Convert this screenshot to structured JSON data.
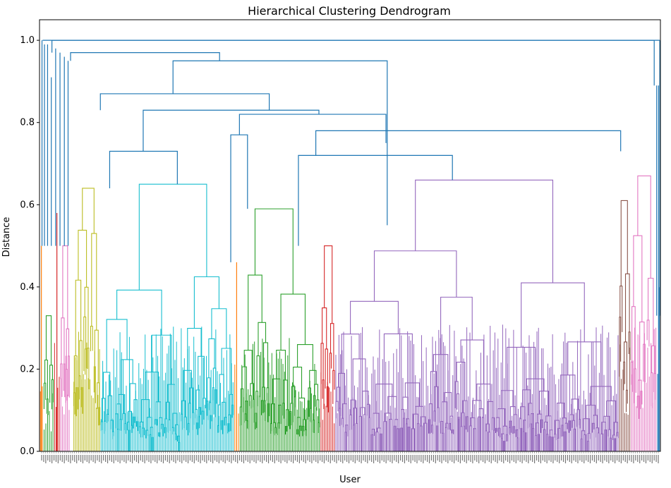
{
  "chart_data": {
    "type": "dendrogram",
    "title": "Hierarchical Clustering Dendrogram",
    "xlabel": "User",
    "ylabel": "Distance",
    "ylim": [
      0.0,
      1.05
    ],
    "yticks": [
      0.0,
      0.2,
      0.4,
      0.6,
      0.8,
      1.0
    ],
    "yticklabels": [
      "0.0",
      "0.2",
      "0.4",
      "0.6",
      "0.8",
      "1.0"
    ],
    "grid": false,
    "leaf_count": 300,
    "above_threshold_color": "#1f77b4",
    "colors": {
      "orange": "#ff7f0e",
      "green": "#2ca02c",
      "red": "#d62728",
      "purple": "#9467bd",
      "brown": "#8c564b",
      "pink": "#e377c2",
      "olive": "#bcbd22",
      "cyan": "#17becf",
      "link": "#1f77b4"
    },
    "clusters": [
      {
        "color": "orange",
        "x": [
          0.0,
          0.6
        ],
        "top": 0.5
      },
      {
        "color": "green",
        "x": [
          0.6,
          2.3
        ],
        "top": 0.33
      },
      {
        "color": "red",
        "x": [
          2.3,
          3.3
        ],
        "top": 0.58
      },
      {
        "color": "pink",
        "x": [
          3.3,
          4.9
        ],
        "top": 0.5
      },
      {
        "color": "olive",
        "x": [
          5.4,
          9.8
        ],
        "top": 0.64
      },
      {
        "color": "cyan",
        "x": [
          9.8,
          31.3
        ],
        "top": 0.65
      },
      {
        "color": "orange",
        "x": [
          31.3,
          32.2
        ],
        "top": 0.46
      },
      {
        "color": "green",
        "x": [
          32.2,
          45.2
        ],
        "top": 0.59
      },
      {
        "color": "red",
        "x": [
          45.2,
          47.6
        ],
        "top": 0.5
      },
      {
        "color": "purple",
        "x": [
          47.6,
          93.3
        ],
        "top": 0.66
      },
      {
        "color": "brown",
        "x": [
          93.3,
          95.2
        ],
        "top": 0.61
      },
      {
        "color": "pink",
        "x": [
          95.2,
          99.4
        ],
        "top": 0.67
      },
      {
        "color": "link",
        "x": [
          99.4,
          100.0
        ],
        "top": 0.89
      }
    ],
    "links": [
      {
        "left": 11.3,
        "right": 22.2,
        "height": 0.73,
        "left_child": 0.64,
        "right_child": 0.65
      },
      {
        "left": 30.8,
        "right": 33.5,
        "height": 0.77,
        "left_child": 0.46,
        "right_child": 0.59
      },
      {
        "left": 41.7,
        "right": 66.5,
        "height": 0.72,
        "left_child": 0.5,
        "right_child": 0.66
      },
      {
        "left": 32.2,
        "right": 55.8,
        "height": 0.82,
        "left_child": 0.77,
        "right_child": 0.75
      },
      {
        "left": 16.7,
        "right": 45.0,
        "height": 0.83,
        "left_child": 0.73,
        "right_child": 0.82
      },
      {
        "left": 44.5,
        "right": 93.6,
        "height": 0.78,
        "left_child": 0.72,
        "right_child": 0.73
      },
      {
        "left": 9.8,
        "right": 37.0,
        "height": 0.87,
        "left_child": 0.83,
        "right_child": 0.83
      },
      {
        "left": 21.5,
        "right": 56.0,
        "height": 0.95,
        "left_child": 0.87,
        "right_child": 0.55
      },
      {
        "left": 5.0,
        "right": 29.0,
        "height": 0.97,
        "left_child": 0.95,
        "right_child": 0.95
      },
      {
        "left": 2.0,
        "right": 99.0,
        "height": 1.0,
        "left_child": 0.97,
        "right_child": 0.89
      }
    ]
  }
}
